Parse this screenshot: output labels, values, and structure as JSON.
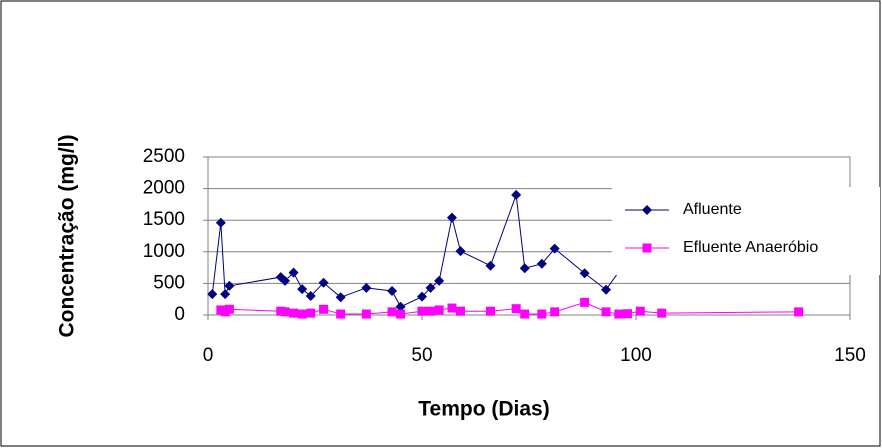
{
  "chart_data": {
    "type": "scatter",
    "x_label": "Tempo (Dias)",
    "y_label": "Concentração (mg/l)",
    "xlim": [
      0,
      150
    ],
    "xticks": [
      0,
      50,
      100,
      150
    ],
    "ylim": [
      0,
      2500
    ],
    "yticks": [
      0,
      500,
      1000,
      1500,
      2000,
      2500
    ],
    "grid": true,
    "legend": "right",
    "series": [
      {
        "name": "Afluente",
        "color": "#000080",
        "marker": "diamond",
        "x": [
          1,
          3,
          4,
          5,
          17,
          18,
          20,
          22,
          24,
          27,
          31,
          37,
          43,
          45,
          50,
          52,
          54,
          57,
          59,
          66,
          72,
          74,
          78,
          81,
          88,
          93,
          97
        ],
        "values": [
          330,
          1460,
          330,
          460,
          600,
          540,
          670,
          410,
          300,
          510,
          280,
          430,
          380,
          130,
          290,
          430,
          540,
          1540,
          1010,
          780,
          1900,
          740,
          810,
          1050,
          660,
          400,
          780
        ]
      },
      {
        "name": "Efluente Anaeróbio",
        "color": "#ff00ff",
        "marker": "square",
        "x": [
          3,
          4,
          5,
          17,
          18,
          20,
          22,
          24,
          27,
          31,
          37,
          43,
          45,
          50,
          52,
          54,
          57,
          59,
          66,
          72,
          74,
          78,
          81,
          88,
          93,
          96,
          98,
          101,
          106,
          138
        ],
        "values": [
          80,
          50,
          90,
          60,
          50,
          30,
          15,
          30,
          90,
          15,
          15,
          50,
          15,
          60,
          60,
          80,
          110,
          60,
          60,
          100,
          15,
          15,
          50,
          200,
          50,
          15,
          20,
          60,
          30,
          50
        ]
      }
    ]
  }
}
